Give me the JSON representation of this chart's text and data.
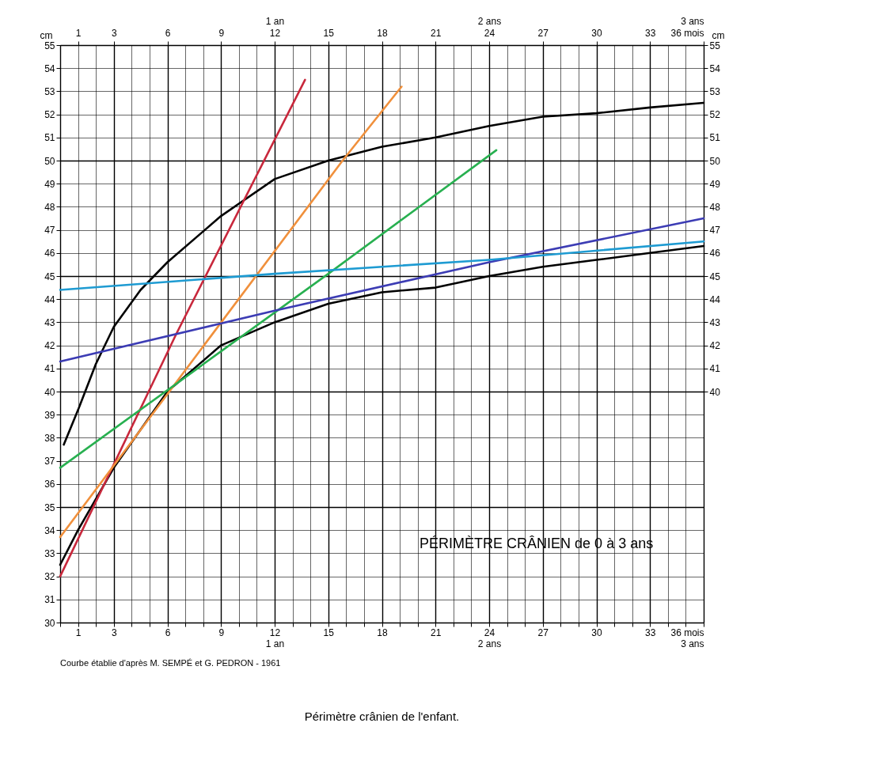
{
  "chart_data": {
    "type": "line",
    "title": "Périmètre crânien de l'enfant.",
    "ylabel": "cm",
    "y2label": "cm",
    "annotations": [
      "PÉRIMÈTRE CRÂNIEN de 0 à 3 ans",
      "Courbe établie d'après M. SEMPÉ et G. PEDRON - 1961"
    ],
    "xlim": [
      0,
      36
    ],
    "ylim": [
      30,
      55
    ],
    "y2lim": [
      30,
      55
    ],
    "x2lim": [
      0,
      36
    ],
    "xticks": [
      {
        "value": 0,
        "label": null
      },
      1,
      {
        "value": 2,
        "label": null
      },
      3,
      {
        "value": 4,
        "label": null
      },
      {
        "value": 5,
        "label": null
      },
      6,
      {
        "value": 7,
        "label": null
      },
      {
        "value": 8,
        "label": null
      },
      9,
      {
        "value": 10,
        "label": null
      },
      {
        "value": 11,
        "label": null
      },
      {
        "value": 12,
        "label": "12\n1 an"
      },
      {
        "value": 13,
        "label": null
      },
      {
        "value": 14,
        "label": null
      },
      15,
      {
        "value": 16,
        "label": null
      },
      {
        "value": 17,
        "label": null
      },
      18,
      {
        "value": 19,
        "label": null
      },
      {
        "value": 20,
        "label": null
      },
      21,
      {
        "value": 22,
        "label": null
      },
      {
        "value": 23,
        "label": null
      },
      {
        "value": 24,
        "label": "24\n2 ans"
      },
      {
        "value": 25,
        "label": null
      },
      {
        "value": 26,
        "label": null
      },
      27,
      {
        "value": 28,
        "label": null
      },
      {
        "value": 29,
        "label": null
      },
      30,
      {
        "value": 31,
        "label": null
      },
      {
        "value": 32,
        "label": null
      },
      33,
      {
        "value": 34,
        "label": null
      },
      {
        "value": 35,
        "label": null
      },
      {
        "value": 36,
        "label": "36 mois\n3 ans"
      }
    ],
    "x2ticks": [
      1,
      3,
      6,
      9,
      {
        "value": 12,
        "label": "1 an\n12"
      },
      15,
      18,
      21,
      {
        "value": 24,
        "label": "2 ans\n24"
      },
      27,
      30,
      33,
      {
        "value": 36,
        "label": "3 ans\n36 mois"
      }
    ],
    "yticks": [
      30,
      31,
      32,
      33,
      34,
      35,
      36,
      37,
      38,
      39,
      40,
      41,
      42,
      43,
      44,
      45,
      46,
      47,
      48,
      49,
      50,
      51,
      52,
      53,
      54,
      55
    ],
    "y2ticks": [
      40,
      41,
      42,
      43,
      44,
      45,
      46,
      47,
      48,
      49,
      50,
      51,
      52,
      53,
      54,
      55
    ],
    "grid": true,
    "marker": "none",
    "line_style": "solid",
    "series": [
      {
        "color": "#000000",
        "x": [
          0.2,
          1,
          2,
          3,
          4.5,
          6,
          9,
          12,
          15,
          18,
          21,
          24,
          27,
          30,
          33,
          36
        ],
        "values": [
          37.7,
          39.2,
          41.2,
          42.8,
          44.4,
          45.6,
          47.6,
          49.2,
          50.0,
          50.6,
          51.0,
          51.5,
          51.9,
          52.05,
          52.3,
          52.5
        ]
      },
      {
        "color": "#000000",
        "x": [
          0,
          1,
          3,
          6,
          9,
          12,
          15,
          18,
          21,
          24,
          27,
          30,
          33,
          36
        ],
        "values": [
          32.5,
          34.0,
          36.7,
          40.0,
          42.0,
          43.0,
          43.8,
          44.3,
          44.5,
          45.0,
          45.4,
          45.7,
          46.0,
          46.3
        ]
      },
      {
        "color": "#c8283c",
        "x": [
          0,
          6.5,
          13.7
        ],
        "values": [
          32.0,
          42.5,
          53.5
        ]
      },
      {
        "color": "#f0903c",
        "x": [
          0,
          15.8,
          19.1
        ],
        "values": [
          33.7,
          50.0,
          53.2
        ]
      },
      {
        "color": "#28b050",
        "x": [
          0,
          15,
          24.4
        ],
        "values": [
          36.7,
          45.1,
          50.45
        ]
      },
      {
        "color": "#3c3cb4",
        "x": [
          0,
          12,
          24,
          36
        ],
        "values": [
          41.3,
          43.5,
          45.6,
          47.5
        ]
      },
      {
        "color": "#1e9bd2",
        "x": [
          0,
          12,
          24,
          36
        ],
        "values": [
          44.4,
          45.1,
          45.7,
          46.5
        ]
      }
    ]
  }
}
